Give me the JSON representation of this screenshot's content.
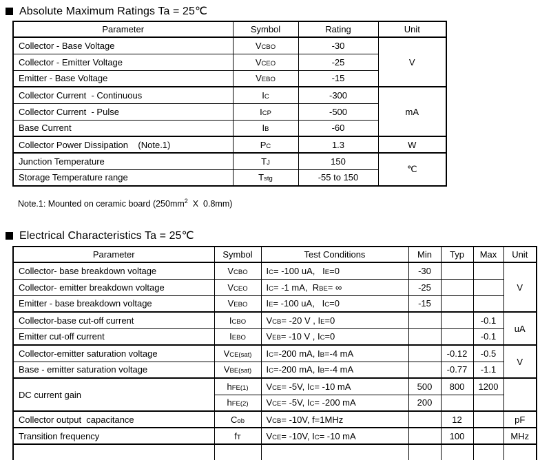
{
  "colors": {
    "text": "#000000",
    "border": "#000000",
    "background": "#ffffff"
  },
  "sections": [
    {
      "title": "Absolute Maximum Ratings Ta = 25℃",
      "note": "Note.1: Mounted on ceramic board (250mm^2^  X  0.8mm)",
      "table": {
        "columns": [
          "Parameter",
          "Symbol",
          "Rating",
          "Unit"
        ],
        "rows": [
          {
            "cells": [
              {
                "col": 0,
                "t": "Collector - Base Voltage"
              },
              {
                "col": 1,
                "t": "V~CBO~"
              },
              {
                "col": 2,
                "t": "-30"
              },
              {
                "col": 3,
                "t": "V",
                "rs": 3
              }
            ]
          },
          {
            "cells": [
              {
                "col": 0,
                "t": "Collector - Emitter Voltage"
              },
              {
                "col": 1,
                "t": "V~CEO~"
              },
              {
                "col": 2,
                "t": "-25"
              }
            ]
          },
          {
            "cells": [
              {
                "col": 0,
                "t": "Emitter - Base Voltage"
              },
              {
                "col": 1,
                "t": "V~EBO~"
              },
              {
                "col": 2,
                "t": "-15"
              }
            ]
          },
          {
            "gt": true,
            "cells": [
              {
                "col": 0,
                "t": "Collector Current  - Continuous"
              },
              {
                "col": 1,
                "t": "I~C~"
              },
              {
                "col": 2,
                "t": "-300"
              },
              {
                "col": 3,
                "t": "mA",
                "rs": 3
              }
            ]
          },
          {
            "cells": [
              {
                "col": 0,
                "t": "Collector Current  - Pulse"
              },
              {
                "col": 1,
                "t": "I~CP~"
              },
              {
                "col": 2,
                "t": "-500"
              }
            ]
          },
          {
            "cells": [
              {
                "col": 0,
                "t": "Base Current"
              },
              {
                "col": 1,
                "t": "I~B~"
              },
              {
                "col": 2,
                "t": "-60"
              }
            ]
          },
          {
            "gt": true,
            "cells": [
              {
                "col": 0,
                "t": "Collector Power Dissipation    (Note.1)"
              },
              {
                "col": 1,
                "t": "P~C~"
              },
              {
                "col": 2,
                "t": "1.3"
              },
              {
                "col": 3,
                "t": "W"
              }
            ]
          },
          {
            "gt": true,
            "cells": [
              {
                "col": 0,
                "t": "Junction Temperature"
              },
              {
                "col": 1,
                "t": "T~J~"
              },
              {
                "col": 2,
                "t": "150"
              },
              {
                "col": 3,
                "t": "℃",
                "rs": 2
              }
            ]
          },
          {
            "cells": [
              {
                "col": 0,
                "t": "Storage Temperature range"
              },
              {
                "col": 1,
                "t": "T~stg~"
              },
              {
                "col": 2,
                "t": "-55 to 150"
              }
            ]
          }
        ]
      }
    },
    {
      "title": "Electrical Characteristics Ta = 25℃",
      "table": {
        "columns": [
          "Parameter",
          "Symbol",
          "Test Conditions",
          "Min",
          "Typ",
          "Max",
          "Unit"
        ],
        "partial_next_row": true,
        "rows": [
          {
            "cells": [
              {
                "col": 0,
                "t": "Collector- base breakdown voltage"
              },
              {
                "col": 1,
                "t": "V~CBO~"
              },
              {
                "col": 2,
                "t": "I~C~= -100 uA,   I~E~=0"
              },
              {
                "col": 3,
                "t": "-30"
              },
              {
                "col": 4,
                "t": ""
              },
              {
                "col": 5,
                "t": ""
              },
              {
                "col": 6,
                "t": "V",
                "rs": 3
              }
            ]
          },
          {
            "cells": [
              {
                "col": 0,
                "t": "Collector- emitter breakdown voltage"
              },
              {
                "col": 1,
                "t": "V~CEO~"
              },
              {
                "col": 2,
                "t": "I~C~= -1 mA,  R~BE~= ∞"
              },
              {
                "col": 3,
                "t": "-25"
              },
              {
                "col": 4,
                "t": ""
              },
              {
                "col": 5,
                "t": ""
              }
            ]
          },
          {
            "cells": [
              {
                "col": 0,
                "t": "Emitter - base breakdown voltage"
              },
              {
                "col": 1,
                "t": "V~EBO~"
              },
              {
                "col": 2,
                "t": "I~E~= -100 uA,   I~C~=0"
              },
              {
                "col": 3,
                "t": "-15"
              },
              {
                "col": 4,
                "t": ""
              },
              {
                "col": 5,
                "t": ""
              }
            ]
          },
          {
            "gt": true,
            "cells": [
              {
                "col": 0,
                "t": "Collector-base cut-off current"
              },
              {
                "col": 1,
                "t": "I~CBO~"
              },
              {
                "col": 2,
                "t": "V~CB~= -20 V , I~E~=0"
              },
              {
                "col": 3,
                "t": ""
              },
              {
                "col": 4,
                "t": ""
              },
              {
                "col": 5,
                "t": "-0.1"
              },
              {
                "col": 6,
                "t": "uA",
                "rs": 2
              }
            ]
          },
          {
            "cells": [
              {
                "col": 0,
                "t": "Emitter cut-off current"
              },
              {
                "col": 1,
                "t": "I~EBO~"
              },
              {
                "col": 2,
                "t": "V~EB~= -10 V , I~C~=0"
              },
              {
                "col": 3,
                "t": ""
              },
              {
                "col": 4,
                "t": ""
              },
              {
                "col": 5,
                "t": "-0.1"
              }
            ]
          },
          {
            "gt": true,
            "cells": [
              {
                "col": 0,
                "t": "Collector-emitter saturation voltage"
              },
              {
                "col": 1,
                "t": "V~CE(sat)~"
              },
              {
                "col": 2,
                "t": "I~C~=-200 mA, I~B~=-4 mA"
              },
              {
                "col": 3,
                "t": ""
              },
              {
                "col": 4,
                "t": "-0.12"
              },
              {
                "col": 5,
                "t": "-0.5"
              },
              {
                "col": 6,
                "t": "V",
                "rs": 2
              }
            ]
          },
          {
            "cells": [
              {
                "col": 0,
                "t": "Base - emitter saturation voltage"
              },
              {
                "col": 1,
                "t": "V~BE(sat)~"
              },
              {
                "col": 2,
                "t": "I~C~=-200 mA, I~B~=-4 mA"
              },
              {
                "col": 3,
                "t": ""
              },
              {
                "col": 4,
                "t": "-0.77"
              },
              {
                "col": 5,
                "t": "-1.1"
              }
            ]
          },
          {
            "gt": true,
            "cells": [
              {
                "col": 0,
                "t": "DC current gain",
                "rs": 2
              },
              {
                "col": 1,
                "t": "h~FE(1)~"
              },
              {
                "col": 2,
                "t": "V~CE~= -5V, I~C~= -10 mA"
              },
              {
                "col": 3,
                "t": "500"
              },
              {
                "col": 4,
                "t": "800"
              },
              {
                "col": 5,
                "t": "1200"
              },
              {
                "col": 6,
                "t": "",
                "rs": 2
              }
            ]
          },
          {
            "cells": [
              {
                "col": 1,
                "t": "h~FE(2)~"
              },
              {
                "col": 2,
                "t": "V~CE~= -5V, I~C~= -200 mA"
              },
              {
                "col": 3,
                "t": "200"
              },
              {
                "col": 4,
                "t": ""
              },
              {
                "col": 5,
                "t": ""
              }
            ]
          },
          {
            "gt": true,
            "cells": [
              {
                "col": 0,
                "t": "Collector output  capacitance"
              },
              {
                "col": 1,
                "t": "C~ob~"
              },
              {
                "col": 2,
                "t": "V~CB~= -10V, f=1MHz"
              },
              {
                "col": 3,
                "t": ""
              },
              {
                "col": 4,
                "t": "12"
              },
              {
                "col": 5,
                "t": ""
              },
              {
                "col": 6,
                "t": "pF"
              }
            ]
          },
          {
            "gt": true,
            "cells": [
              {
                "col": 0,
                "t": "Transition frequency"
              },
              {
                "col": 1,
                "t": "f~T~"
              },
              {
                "col": 2,
                "t": "V~CE~= -10V, I~C~= -10 mA"
              },
              {
                "col": 3,
                "t": ""
              },
              {
                "col": 4,
                "t": "100"
              },
              {
                "col": 5,
                "t": ""
              },
              {
                "col": 6,
                "t": "MHz"
              }
            ]
          }
        ]
      }
    }
  ]
}
